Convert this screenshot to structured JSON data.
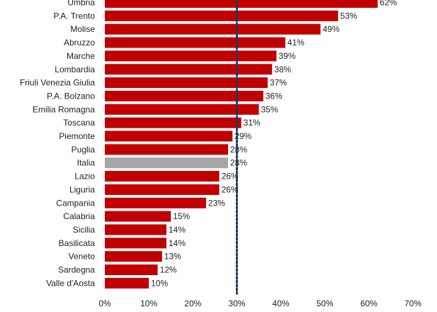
{
  "chart_data": {
    "type": "bar",
    "orientation": "horizontal",
    "categories": [
      "Umbria",
      "P.A. Trento",
      "Molise",
      "Abruzzo",
      "Marche",
      "Lombardia",
      "Friuli Venezia Giulia",
      "P.A. Bolzano",
      "Emilia Romagna",
      "Toscana",
      "Piemonte",
      "Puglia",
      "Italia",
      "Lazio",
      "Liguria",
      "Campania",
      "Calabria",
      "Sicilia",
      "Basilicata",
      "Veneto",
      "Sardegna",
      "Valle d'Aosta"
    ],
    "values": [
      62,
      53,
      49,
      41,
      39,
      38,
      37,
      36,
      35,
      31,
      29,
      28,
      28,
      26,
      26,
      23,
      15,
      14,
      14,
      13,
      12,
      10
    ],
    "value_labels": [
      "62%",
      "53%",
      "49%",
      "41%",
      "39%",
      "38%",
      "37%",
      "36%",
      "35%",
      "31%",
      "29%",
      "28%",
      "28%",
      "26%",
      "26%",
      "23%",
      "15%",
      "14%",
      "14%",
      "13%",
      "12%",
      "10%"
    ],
    "xlim": [
      0,
      70
    ],
    "x_ticks": [
      "0%",
      "10%",
      "20%",
      "30%",
      "40%",
      "50%",
      "60%",
      "70%"
    ],
    "reference_line": 30,
    "highlight_category": "Italia",
    "colors": {
      "bar": "#c00000",
      "highlight": "#a6a6a6",
      "reference_line": "#1f3864"
    },
    "grid": false,
    "legend": "none",
    "title": "",
    "xlabel": "",
    "ylabel": ""
  }
}
